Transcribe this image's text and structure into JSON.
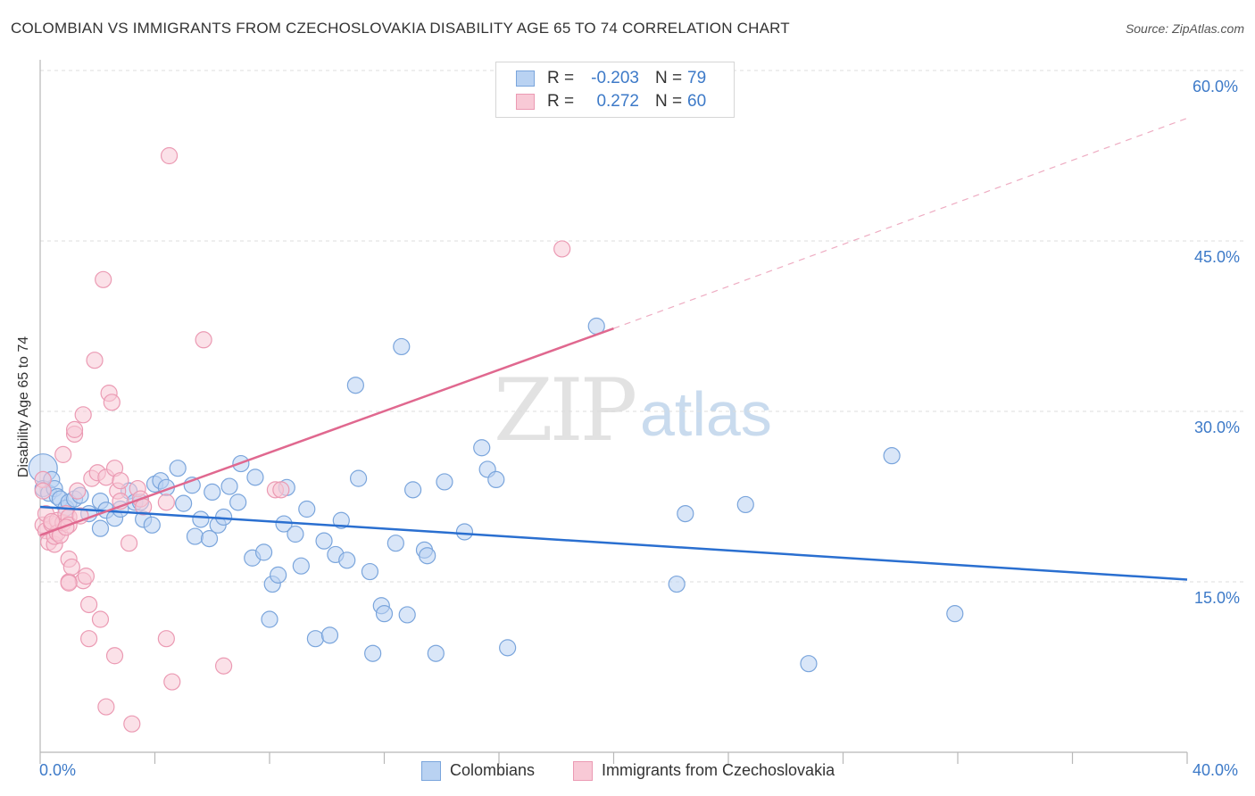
{
  "header": {
    "title": "COLOMBIAN VS IMMIGRANTS FROM CZECHOSLOVAKIA DISABILITY AGE 65 TO 74 CORRELATION CHART",
    "source": "Source: ZipAtlas.com"
  },
  "watermark": {
    "zip": "ZIP",
    "atlas": "atlas"
  },
  "legend": {
    "rows": [
      {
        "r_label": "R =",
        "r_value": "-0.203",
        "n_label": "N =",
        "n_value": "79",
        "fill": "#b9d2f2",
        "stroke": "#7aa5dc"
      },
      {
        "r_label": "R =",
        "r_value": "0.272",
        "n_label": "N =",
        "n_value": "60",
        "fill": "#f8c9d6",
        "stroke": "#eb9ab3"
      }
    ]
  },
  "bottom_legend": {
    "items": [
      {
        "label": "Colombians",
        "fill": "#b9d2f2",
        "stroke": "#7aa5dc"
      },
      {
        "label": "Immigrants from Czechoslovakia",
        "fill": "#f8c9d6",
        "stroke": "#eb9ab3"
      }
    ]
  },
  "chart_data": {
    "type": "scatter",
    "title": "COLOMBIAN VS IMMIGRANTS FROM CZECHOSLOVAKIA DISABILITY AGE 65 TO 74 CORRELATION CHART",
    "xlabel": "",
    "ylabel": "Disability Age 65 to 74",
    "xlim": [
      0,
      40
    ],
    "ylim": [
      0,
      60
    ],
    "x_tick_labels": [
      "0.0%",
      "40.0%"
    ],
    "y_ticks": [
      15,
      30,
      45,
      60
    ],
    "y_tick_labels": [
      "15.0%",
      "30.0%",
      "45.0%",
      "60.0%"
    ],
    "grid": true,
    "legend_position": "top-center",
    "colors": {
      "blue_fill": "#b9d2f2",
      "blue_stroke": "#7aa5dc",
      "blue_line": "#2a6fd0",
      "pink_fill": "#f8c9d6",
      "pink_stroke": "#eb9ab3",
      "pink_line": "#e0688f",
      "axis": "#b8b8b8",
      "grid": "#dcdcdc",
      "tick_text": "#3d7ac8"
    },
    "series": [
      {
        "name": "Colombians",
        "r": -0.203,
        "n": 79,
        "trend": {
          "x": [
            0.0,
            40.0
          ],
          "y": [
            21.6,
            15.2
          ],
          "style": "solid"
        },
        "points": [
          [
            0.1,
            25.0
          ],
          [
            0.1,
            23.2
          ],
          [
            0.3,
            22.8
          ],
          [
            0.4,
            24.0
          ],
          [
            0.5,
            23.2
          ],
          [
            0.6,
            22.5
          ],
          [
            0.7,
            22.3
          ],
          [
            0.9,
            21.5
          ],
          [
            1.0,
            22.0
          ],
          [
            1.2,
            22.3
          ],
          [
            1.4,
            22.6
          ],
          [
            1.7,
            21.0
          ],
          [
            2.1,
            22.1
          ],
          [
            2.1,
            19.7
          ],
          [
            2.3,
            21.3
          ],
          [
            2.6,
            20.6
          ],
          [
            2.8,
            21.4
          ],
          [
            3.1,
            23.0
          ],
          [
            3.3,
            22.0
          ],
          [
            3.5,
            22.0
          ],
          [
            3.6,
            20.5
          ],
          [
            3.9,
            20.0
          ],
          [
            4.0,
            23.6
          ],
          [
            4.2,
            23.9
          ],
          [
            4.4,
            23.3
          ],
          [
            4.8,
            25.0
          ],
          [
            5.0,
            21.9
          ],
          [
            5.3,
            23.5
          ],
          [
            5.4,
            19.0
          ],
          [
            5.6,
            20.5
          ],
          [
            5.9,
            18.8
          ],
          [
            6.0,
            22.9
          ],
          [
            6.2,
            20.0
          ],
          [
            6.4,
            20.7
          ],
          [
            6.6,
            23.4
          ],
          [
            6.9,
            22.0
          ],
          [
            7.0,
            25.4
          ],
          [
            7.4,
            17.1
          ],
          [
            7.5,
            24.2
          ],
          [
            7.8,
            17.6
          ],
          [
            8.0,
            11.7
          ],
          [
            8.1,
            14.8
          ],
          [
            8.3,
            15.6
          ],
          [
            8.5,
            20.1
          ],
          [
            8.6,
            23.3
          ],
          [
            8.9,
            19.2
          ],
          [
            9.1,
            16.4
          ],
          [
            9.3,
            21.4
          ],
          [
            9.6,
            10.0
          ],
          [
            9.9,
            18.6
          ],
          [
            10.1,
            10.3
          ],
          [
            10.3,
            17.4
          ],
          [
            10.5,
            20.4
          ],
          [
            10.7,
            16.9
          ],
          [
            11.0,
            32.3
          ],
          [
            11.1,
            24.1
          ],
          [
            11.5,
            15.9
          ],
          [
            11.6,
            8.7
          ],
          [
            11.9,
            12.9
          ],
          [
            12.0,
            12.2
          ],
          [
            12.4,
            18.4
          ],
          [
            12.6,
            35.7
          ],
          [
            12.8,
            12.1
          ],
          [
            13.0,
            23.1
          ],
          [
            13.4,
            17.8
          ],
          [
            13.5,
            17.3
          ],
          [
            13.8,
            8.7
          ],
          [
            14.1,
            23.8
          ],
          [
            14.8,
            19.4
          ],
          [
            15.4,
            26.8
          ],
          [
            15.6,
            24.9
          ],
          [
            15.9,
            24.0
          ],
          [
            16.3,
            9.2
          ],
          [
            19.4,
            37.5
          ],
          [
            22.2,
            14.8
          ],
          [
            22.5,
            21.0
          ],
          [
            24.6,
            21.8
          ],
          [
            26.8,
            7.8
          ],
          [
            29.7,
            26.1
          ],
          [
            31.9,
            12.2
          ]
        ]
      },
      {
        "name": "Immigrants from Czechoslovakia",
        "r": 0.272,
        "n": 60,
        "trend": {
          "x": [
            0.0,
            20.0
          ],
          "y": [
            19.1,
            37.3
          ],
          "style": "solid",
          "extension_x": [
            20.0,
            40.0
          ],
          "extension_y": [
            37.3,
            55.8
          ],
          "extension_style": "dashed"
        },
        "points": [
          [
            0.1,
            24.0
          ],
          [
            0.1,
            23.0
          ],
          [
            0.1,
            20.0
          ],
          [
            0.2,
            21.0
          ],
          [
            0.2,
            19.5
          ],
          [
            0.3,
            18.5
          ],
          [
            0.4,
            20.1
          ],
          [
            0.5,
            18.3
          ],
          [
            0.5,
            19.0
          ],
          [
            0.6,
            20.4
          ],
          [
            0.6,
            19.3
          ],
          [
            0.7,
            19.1
          ],
          [
            0.8,
            20.2
          ],
          [
            0.8,
            26.2
          ],
          [
            0.9,
            21.0
          ],
          [
            1.0,
            20.7
          ],
          [
            1.0,
            20.0
          ],
          [
            1.0,
            17.0
          ],
          [
            1.0,
            15.0
          ],
          [
            1.1,
            16.3
          ],
          [
            1.2,
            28.0
          ],
          [
            1.2,
            28.4
          ],
          [
            1.3,
            23.0
          ],
          [
            1.4,
            20.8
          ],
          [
            1.5,
            15.1
          ],
          [
            1.5,
            29.7
          ],
          [
            1.6,
            15.5
          ],
          [
            1.7,
            10.0
          ],
          [
            1.7,
            13.0
          ],
          [
            1.8,
            24.1
          ],
          [
            1.9,
            34.5
          ],
          [
            2.0,
            24.6
          ],
          [
            2.1,
            11.7
          ],
          [
            2.2,
            41.6
          ],
          [
            2.3,
            24.2
          ],
          [
            2.3,
            4.0
          ],
          [
            2.4,
            31.6
          ],
          [
            2.5,
            30.8
          ],
          [
            2.6,
            8.5
          ],
          [
            2.6,
            25.0
          ],
          [
            2.7,
            23.0
          ],
          [
            2.8,
            23.9
          ],
          [
            2.8,
            22.1
          ],
          [
            3.1,
            18.4
          ],
          [
            3.2,
            2.5
          ],
          [
            3.4,
            23.2
          ],
          [
            3.5,
            22.3
          ],
          [
            3.6,
            21.6
          ],
          [
            4.4,
            10.0
          ],
          [
            4.4,
            22.0
          ],
          [
            4.5,
            52.5
          ],
          [
            4.6,
            6.2
          ],
          [
            5.7,
            36.3
          ],
          [
            6.4,
            7.6
          ],
          [
            8.2,
            23.1
          ],
          [
            8.4,
            23.1
          ],
          [
            18.2,
            44.3
          ],
          [
            1.0,
            14.9
          ],
          [
            0.4,
            20.3
          ],
          [
            0.9,
            19.8
          ]
        ]
      }
    ]
  }
}
